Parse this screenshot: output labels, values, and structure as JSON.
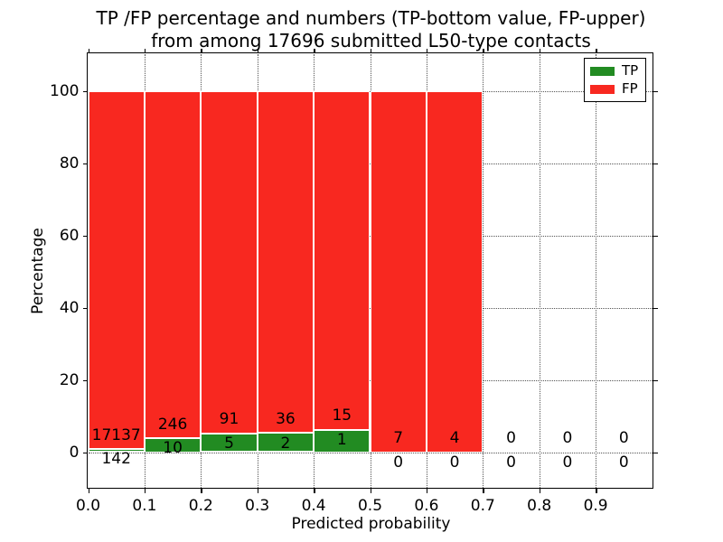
{
  "chart_data": {
    "type": "bar",
    "stacked": true,
    "title_lines": [
      "TP /FP percentage and numbers (TP-bottom value, FP-upper)",
      "from among 17696 submitted L50-type contacts"
    ],
    "xlabel": "Predicted probability",
    "ylabel": "Percentage",
    "total_submitted": 17696,
    "bin_width": 0.1,
    "categories": [
      "0.0-0.1",
      "0.1-0.2",
      "0.2-0.3",
      "0.3-0.4",
      "0.4-0.5",
      "0.5-0.6",
      "0.6-0.7",
      "0.7-0.8",
      "0.8-0.9",
      "0.9-1.0"
    ],
    "series": [
      {
        "name": "TP",
        "color": "#228b22",
        "values": [
          142,
          10,
          5,
          2,
          1,
          0,
          0,
          0,
          0,
          0
        ]
      },
      {
        "name": "FP",
        "color": "#f82820",
        "values": [
          17137,
          246,
          91,
          36,
          15,
          7,
          4,
          0,
          0,
          0
        ]
      }
    ],
    "bar_edge_color": "#ffffff",
    "xticks": [
      "0.0",
      "0.1",
      "0.2",
      "0.3",
      "0.4",
      "0.5",
      "0.6",
      "0.7",
      "0.8",
      "0.9"
    ],
    "yticks": [
      0,
      20,
      40,
      60,
      80,
      100
    ],
    "xlim": [
      0.0,
      1.0
    ],
    "ylim": [
      -9.75,
      110.25
    ],
    "grid": "dotted",
    "legend_position": "upper right",
    "note": "percent stacked to 100 per bin; labels show raw counts, TP bottom, FP upper"
  }
}
